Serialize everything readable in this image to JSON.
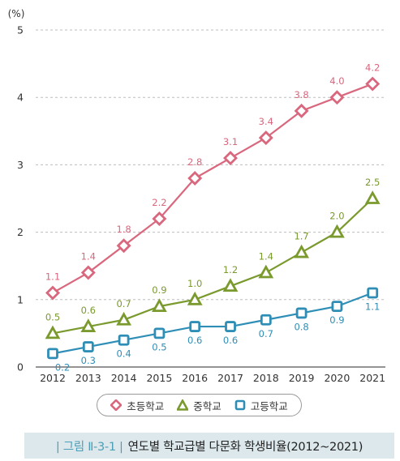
{
  "chart_data": {
    "type": "line",
    "ylabel": "(%)",
    "ylim": [
      0,
      5
    ],
    "yticks": [
      "0",
      "1",
      "2",
      "3",
      "4",
      "5"
    ],
    "grid": true,
    "categories": [
      "2012",
      "2013",
      "2014",
      "2015",
      "2016",
      "2017",
      "2018",
      "2019",
      "2020",
      "2021"
    ],
    "series": [
      {
        "name": "초등학교",
        "color": "#d9677d",
        "marker": "diamond",
        "values": [
          1.1,
          1.4,
          1.8,
          2.2,
          2.8,
          3.1,
          3.4,
          3.8,
          4.0,
          4.2
        ],
        "labels": [
          "1.1",
          "1.4",
          "1.8",
          "2.2",
          "2.8",
          "3.1",
          "3.4",
          "3.8",
          "4.0",
          "4.2"
        ]
      },
      {
        "name": "중학교",
        "color": "#7a9a2e",
        "marker": "triangle",
        "values": [
          0.5,
          0.6,
          0.7,
          0.9,
          1.0,
          1.2,
          1.4,
          1.7,
          2.0,
          2.5
        ],
        "labels": [
          "0.5",
          "0.6",
          "0.7",
          "0.9",
          "1.0",
          "1.2",
          "1.4",
          "1.7",
          "2.0",
          "2.5"
        ]
      },
      {
        "name": "고등학교",
        "color": "#2e8eb6",
        "marker": "square",
        "values": [
          0.2,
          0.3,
          0.4,
          0.5,
          0.6,
          0.6,
          0.7,
          0.8,
          0.9,
          1.1
        ],
        "labels": [
          "0.2",
          "0.3",
          "0.4",
          "0.5",
          "0.6",
          "0.6",
          "0.7",
          "0.8",
          "0.9",
          "1.1"
        ]
      }
    ],
    "legend_position": "bottom-center"
  },
  "caption": {
    "tag": "| 그림 Ⅱ-3-1 |",
    "title": "연도별 학교급별 다문화 학생비율(2012~2021)"
  }
}
